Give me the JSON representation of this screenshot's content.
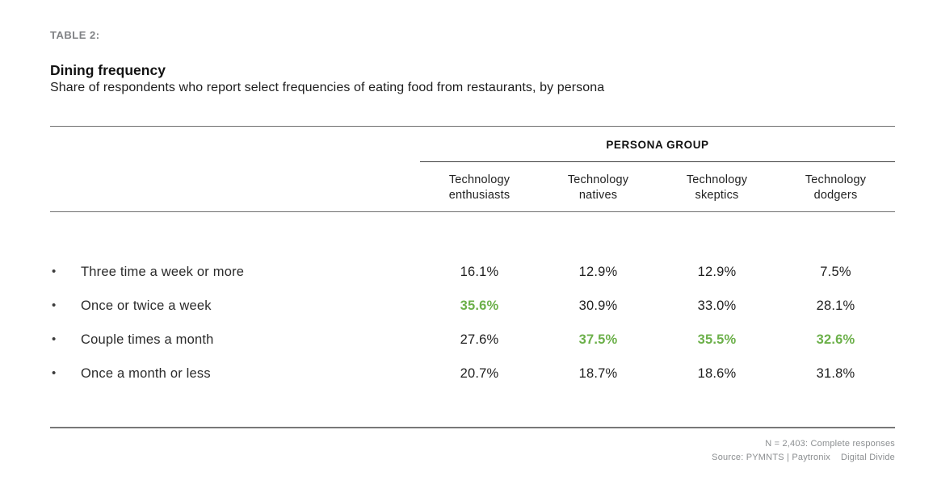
{
  "colors": {
    "highlight_green": "#6cb04a",
    "rule_gray": "#6e6e6e",
    "tag_gray": "#808285",
    "footnote_gray": "#8b8e90"
  },
  "header": {
    "tag": "TABLE 2:",
    "title": "Dining frequency",
    "subtitle": "Share of respondents who report select frequencies of eating food from restaurants, by persona"
  },
  "table": {
    "group_header": "PERSONA GROUP",
    "columns": [
      {
        "line1": "Technology",
        "line2": "enthusiasts"
      },
      {
        "line1": "Technology",
        "line2": "natives"
      },
      {
        "line1": "Technology",
        "line2": "skeptics"
      },
      {
        "line1": "Technology",
        "line2": "dodgers"
      }
    ],
    "rows": [
      {
        "label": "Three time a week or more",
        "cells": [
          {
            "text": "16.1%",
            "highlight": false
          },
          {
            "text": "12.9%",
            "highlight": false
          },
          {
            "text": "12.9%",
            "highlight": false
          },
          {
            "text": "7.5%",
            "highlight": false
          }
        ]
      },
      {
        "label": "Once or twice a week",
        "cells": [
          {
            "text": "35.6%",
            "highlight": true
          },
          {
            "text": "30.9%",
            "highlight": false
          },
          {
            "text": "33.0%",
            "highlight": false
          },
          {
            "text": "28.1%",
            "highlight": false
          }
        ]
      },
      {
        "label": "Couple times a month",
        "cells": [
          {
            "text": "27.6%",
            "highlight": false
          },
          {
            "text": "37.5%",
            "highlight": true
          },
          {
            "text": "35.5%",
            "highlight": true
          },
          {
            "text": "32.6%",
            "highlight": true
          }
        ]
      },
      {
        "label": "Once a month or less",
        "cells": [
          {
            "text": "20.7%",
            "highlight": false
          },
          {
            "text": "18.7%",
            "highlight": false
          },
          {
            "text": "18.6%",
            "highlight": false
          },
          {
            "text": "31.8%",
            "highlight": false
          }
        ]
      }
    ],
    "footnotes": {
      "line1": "N = 2,403: Complete responses",
      "line2_left": "Source: PYMNTS | Paytronix",
      "line2_right": "Digital Divide"
    }
  },
  "chart_data": {
    "type": "table",
    "title": "Dining frequency",
    "subtitle": "Share of respondents who report select frequencies of eating food from restaurants, by persona",
    "table_tag": "TABLE 2:",
    "column_group_label": "PERSONA GROUP",
    "categories": [
      "Technology enthusiasts",
      "Technology natives",
      "Technology skeptics",
      "Technology dodgers"
    ],
    "rows": [
      "Three time a week or more",
      "Once or twice a week",
      "Couple times a month",
      "Once a month or less"
    ],
    "series": [
      {
        "name": "Technology enthusiasts",
        "values": [
          16.1,
          35.6,
          27.6,
          20.7
        ]
      },
      {
        "name": "Technology natives",
        "values": [
          12.9,
          30.9,
          37.5,
          18.7
        ]
      },
      {
        "name": "Technology skeptics",
        "values": [
          12.9,
          33.0,
          35.5,
          18.6
        ]
      },
      {
        "name": "Technology dodgers",
        "values": [
          7.5,
          28.1,
          32.6,
          31.8
        ]
      }
    ],
    "unit": "percent",
    "highlighted_cells": [
      {
        "row": "Once or twice a week",
        "column": "Technology enthusiasts",
        "value": 35.6
      },
      {
        "row": "Couple times a month",
        "column": "Technology natives",
        "value": 37.5
      },
      {
        "row": "Couple times a month",
        "column": "Technology skeptics",
        "value": 35.5
      },
      {
        "row": "Couple times a month",
        "column": "Technology dodgers",
        "value": 32.6
      }
    ],
    "highlight_color": "#6cb04a",
    "notes": [
      "N = 2,403: Complete responses",
      "Source: PYMNTS | Paytronix   Digital Divide"
    ]
  }
}
